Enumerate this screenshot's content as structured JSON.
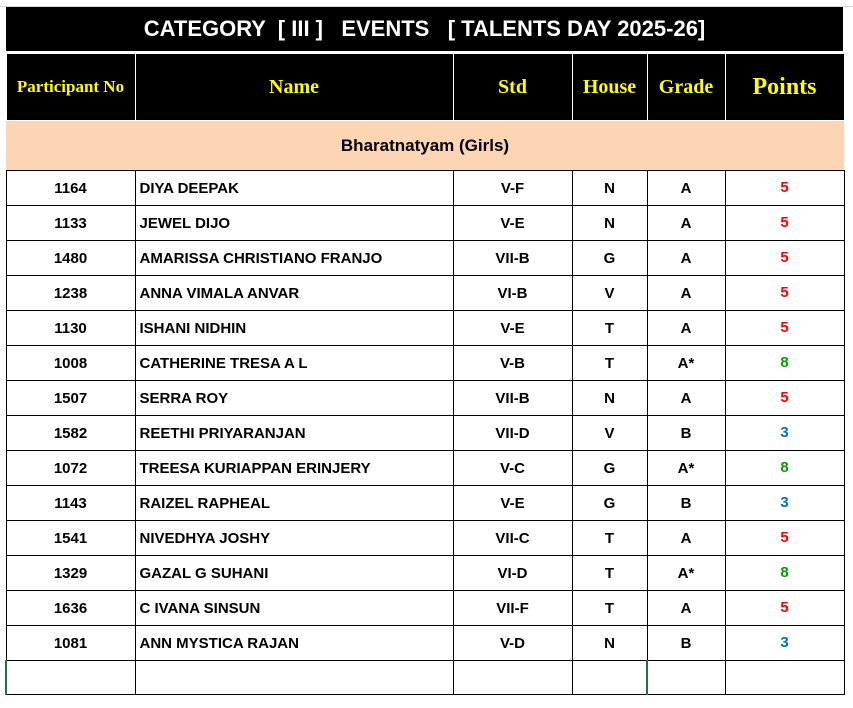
{
  "sheet": {
    "title": "CATEGORY  [ III ]   EVENTS   [ TALENTS DAY 2025-26]",
    "headers": {
      "participant_no": "Participant No",
      "name": "Name",
      "std": "Std",
      "house": "House",
      "grade": "Grade",
      "points": "Points"
    },
    "section": "Bharatnatyam (Girls)",
    "colors": {
      "points_5": "#ff0000",
      "points_8": "#00a000",
      "points_3": "#0070c0",
      "section_bg": "#fcd5b4",
      "header_text": "#ffff00"
    },
    "rows": [
      {
        "no": "1164",
        "name": "DIYA DEEPAK",
        "std": "V-F",
        "house": "N",
        "grade": "A",
        "points": "5"
      },
      {
        "no": "1133",
        "name": "JEWEL DIJO",
        "std": "V-E",
        "house": "N",
        "grade": "A",
        "points": "5"
      },
      {
        "no": "1480",
        "name": "AMARISSA CHRISTIANO FRANJO",
        "std": "VII-B",
        "house": "G",
        "grade": "A",
        "points": "5"
      },
      {
        "no": "1238",
        "name": "ANNA VIMALA ANVAR",
        "std": "VI-B",
        "house": "V",
        "grade": "A",
        "points": "5"
      },
      {
        "no": "1130",
        "name": "ISHANI NIDHIN",
        "std": "V-E",
        "house": "T",
        "grade": "A",
        "points": "5"
      },
      {
        "no": "1008",
        "name": "CATHERINE TRESA A L",
        "std": "V-B",
        "house": "T",
        "grade": "A*",
        "points": "8"
      },
      {
        "no": "1507",
        "name": "SERRA ROY",
        "std": "VII-B",
        "house": "N",
        "grade": "A",
        "points": "5"
      },
      {
        "no": "1582",
        "name": "REETHI PRIYARANJAN",
        "std": "VII-D",
        "house": "V",
        "grade": "B",
        "points": "3"
      },
      {
        "no": "1072",
        "name": "TREESA KURIAPPAN ERINJERY",
        "std": "V-C",
        "house": "G",
        "grade": "A*",
        "points": "8"
      },
      {
        "no": "1143",
        "name": "RAIZEL RAPHEAL",
        "std": "V-E",
        "house": "G",
        "grade": "B",
        "points": "3"
      },
      {
        "no": "1541",
        "name": "NIVEDHYA JOSHY",
        "std": "VII-C",
        "house": "T",
        "grade": "A",
        "points": "5"
      },
      {
        "no": "1329",
        "name": "GAZAL G SUHANI",
        "std": "VI-D",
        "house": "T",
        "grade": "A*",
        "points": "8"
      },
      {
        "no": "1636",
        "name": "C IVANA SINSUN",
        "std": "VII-F",
        "house": "T",
        "grade": "A",
        "points": "5"
      },
      {
        "no": "1081",
        "name": "ANN MYSTICA RAJAN",
        "std": "V-D",
        "house": "N",
        "grade": "B",
        "points": "3"
      }
    ]
  }
}
